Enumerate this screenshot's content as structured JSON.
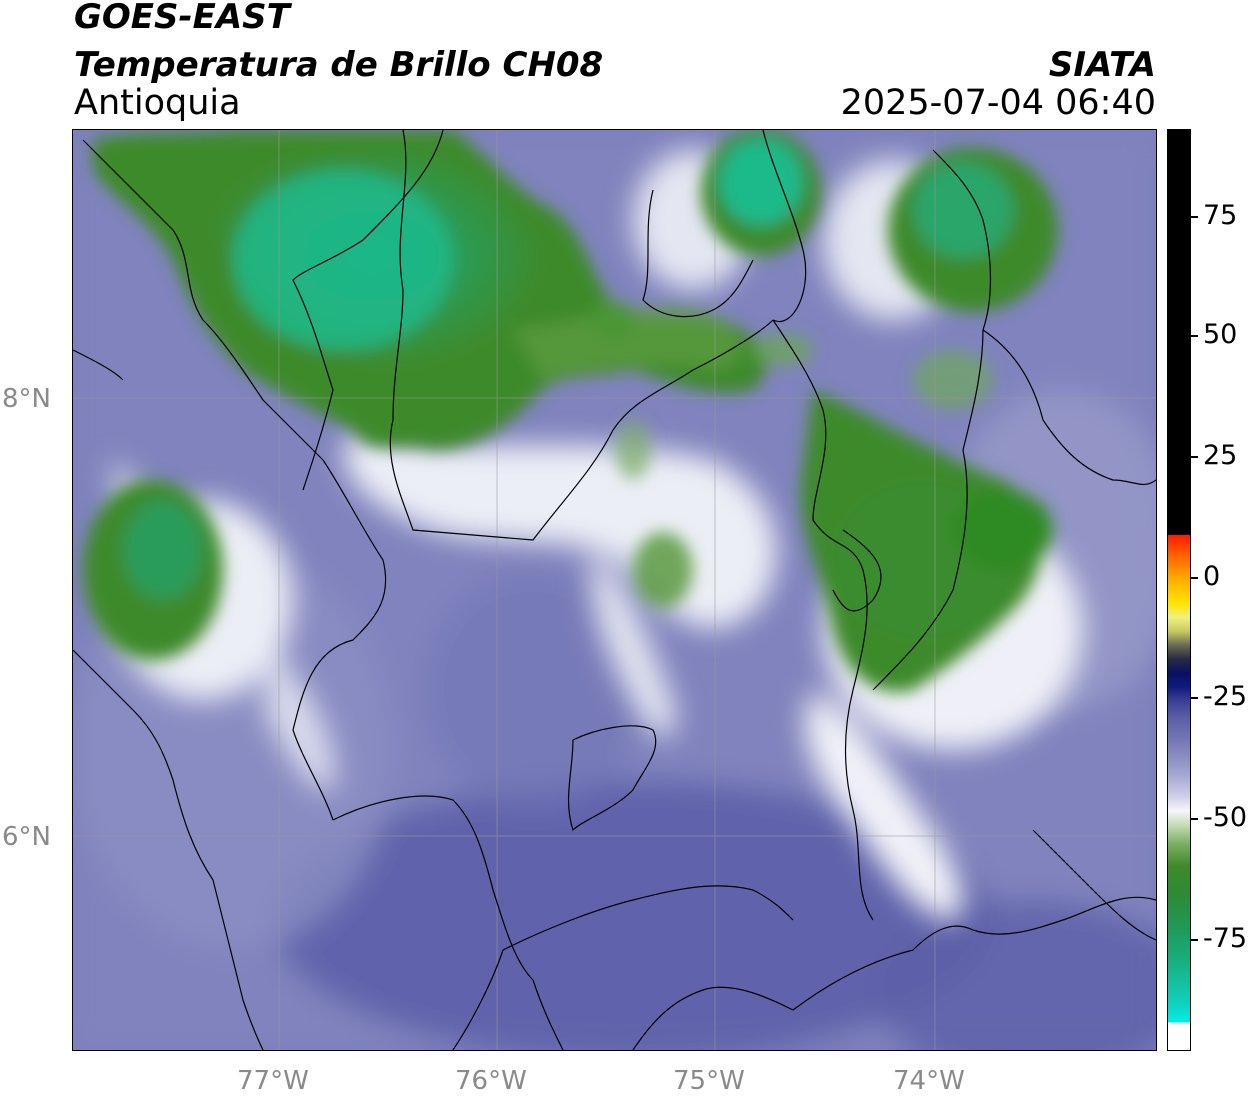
{
  "title": {
    "line1": "GOES-EAST",
    "line2": "Temperatura de Brillo CH08",
    "line3": "Antioquia",
    "org": "SIATA",
    "datetime": "2025-07-04 06:40"
  },
  "axes": {
    "lon_ticks": [
      "77°W",
      "76°W",
      "75°W",
      "74°W"
    ],
    "lat_ticks": [
      "8°N",
      "6°N"
    ]
  },
  "colorbar": {
    "labels": [
      "75",
      "50",
      "25",
      "0",
      "-25",
      "-50",
      "-75"
    ]
  },
  "colors": {
    "cold_green": "#3e8a2a",
    "coldest_teal": "#1fb98a",
    "warm_purple": "#7c7fbb",
    "warmest_purple": "#5c5fa8",
    "light": "#e9eaf4"
  }
}
